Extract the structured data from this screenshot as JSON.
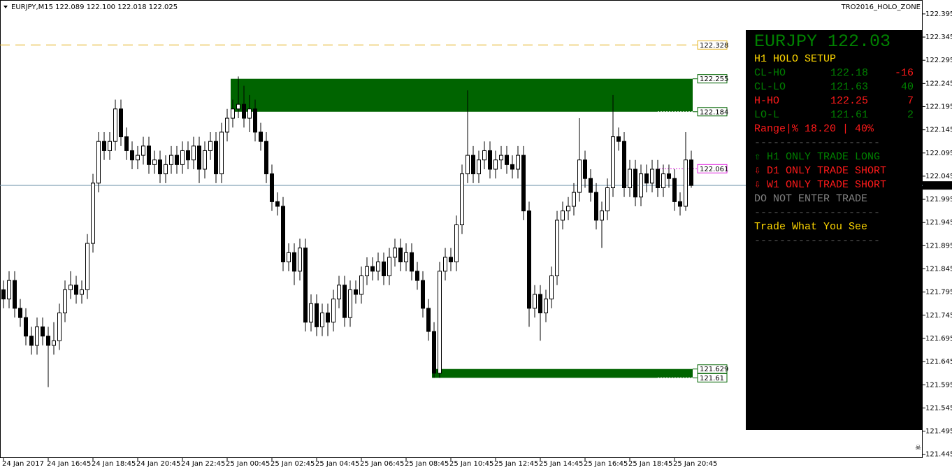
{
  "chart_data": {
    "type": "candlestick",
    "title": "EURJPY,M15  122.089 122.100 122.018 122.025",
    "indicator": "TRO2016_HOLO_ZONE",
    "categories": [
      "24 Jan 2017",
      null,
      null,
      null,
      null,
      null,
      null,
      null,
      "24 Jan 16:45",
      null,
      null,
      null,
      null,
      null,
      null,
      null,
      "24 Jan 18:45",
      null,
      null,
      null,
      null,
      null,
      null,
      null,
      "24 Jan 20:45",
      null,
      null,
      null,
      null,
      null,
      null,
      null,
      "24 Jan 22:45",
      null,
      null,
      null,
      null,
      null,
      null,
      null,
      "25 Jan 00:45",
      null,
      null,
      null,
      null,
      null,
      null,
      null,
      "25 Jan 02:45",
      null,
      null,
      null,
      null,
      null,
      null,
      null,
      "25 Jan 04:45",
      null,
      null,
      null,
      null,
      null,
      null,
      null,
      "25 Jan 06:45",
      null,
      null,
      null,
      null,
      null,
      null,
      null,
      "25 Jan 08:45",
      null,
      null,
      null,
      null,
      null,
      null,
      null,
      "25 Jan 10:45",
      null,
      null,
      null,
      null,
      null,
      null,
      null,
      "25 Jan 12:45",
      null,
      null,
      null,
      null,
      null,
      null,
      null,
      "25 Jan 14:45",
      null,
      null,
      null,
      null,
      null,
      null,
      null,
      "25 Jan 16:45",
      null,
      null,
      null,
      null,
      null,
      null,
      null,
      "25 Jan 18:45",
      null,
      null,
      null,
      null,
      null,
      null,
      null,
      "25 Jan 20:45",
      null,
      null,
      null
    ],
    "open": [
      121.8,
      121.78,
      121.82,
      121.76,
      121.74,
      121.7,
      121.68,
      121.72,
      121.7,
      121.68,
      121.69,
      121.75,
      121.8,
      121.81,
      121.79,
      121.8,
      121.9,
      122.03,
      122.12,
      122.1,
      122.12,
      122.19,
      122.13,
      122.1,
      122.08,
      122.09,
      122.11,
      122.07,
      122.08,
      122.05,
      122.07,
      122.09,
      122.07,
      122.1,
      122.08,
      122.11,
      122.06,
      122.1,
      122.12,
      122.05,
      122.14,
      122.17,
      122.19,
      122.2,
      122.17,
      122.19,
      122.14,
      122.12,
      122.05,
      121.99,
      121.98,
      121.86,
      121.88,
      121.84,
      121.89,
      121.73,
      121.77,
      121.72,
      121.75,
      121.73,
      121.78,
      121.81,
      121.74,
      121.8,
      121.79,
      121.83,
      121.85,
      121.84,
      121.86,
      121.83,
      121.87,
      121.89,
      121.86,
      121.88,
      121.84,
      121.82,
      121.76,
      121.71,
      121.62,
      121.84,
      121.87,
      121.86,
      121.94,
      122.05,
      122.09,
      122.05,
      122.08,
      122.1,
      122.06,
      122.08,
      122.09,
      122.07,
      122.06,
      122.09,
      121.97,
      121.76,
      121.79,
      121.75,
      121.78,
      121.83,
      121.95,
      121.97,
      121.98,
      122.01,
      122.08,
      122.04,
      122.01,
      121.95,
      121.97,
      122.02,
      122.13,
      122.12,
      122.02,
      122.06,
      122.0,
      122.05,
      122.03,
      122.06,
      122.02,
      122.05,
      122.04,
      121.99,
      121.98,
      122.08
    ],
    "high": [
      121.82,
      121.84,
      121.84,
      121.78,
      121.76,
      121.72,
      121.74,
      121.74,
      121.72,
      121.73,
      121.77,
      121.82,
      121.84,
      121.83,
      121.82,
      121.92,
      122.05,
      122.14,
      122.14,
      122.14,
      122.21,
      122.21,
      122.15,
      122.12,
      122.11,
      122.13,
      122.13,
      122.1,
      122.1,
      122.09,
      122.11,
      122.11,
      122.12,
      122.12,
      122.13,
      122.13,
      122.12,
      122.14,
      122.14,
      122.16,
      122.19,
      122.21,
      122.26,
      122.24,
      122.22,
      122.21,
      122.16,
      122.14,
      122.07,
      122.01,
      122.0,
      121.9,
      121.9,
      121.91,
      121.91,
      121.79,
      121.79,
      121.77,
      121.77,
      121.8,
      121.83,
      121.83,
      121.82,
      121.82,
      121.85,
      121.87,
      121.87,
      121.88,
      121.88,
      121.89,
      121.91,
      121.91,
      121.9,
      121.9,
      121.86,
      121.84,
      121.78,
      121.73,
      121.86,
      121.89,
      121.89,
      121.96,
      122.07,
      122.23,
      122.11,
      122.1,
      122.12,
      122.12,
      122.1,
      122.11,
      122.11,
      122.09,
      122.11,
      122.11,
      121.99,
      121.81,
      121.81,
      121.8,
      121.85,
      121.97,
      121.99,
      122.0,
      122.03,
      122.17,
      122.1,
      122.06,
      122.03,
      121.99,
      122.04,
      122.22,
      122.15,
      122.14,
      122.08,
      122.08,
      122.07,
      122.07,
      122.08,
      122.08,
      122.07,
      122.07,
      122.06,
      122.01,
      122.14,
      122.1
    ],
    "low": [
      121.76,
      121.76,
      121.74,
      121.72,
      121.68,
      121.66,
      121.66,
      121.68,
      121.59,
      121.66,
      121.67,
      121.73,
      121.78,
      121.77,
      121.77,
      121.78,
      121.88,
      122.01,
      122.08,
      122.08,
      122.1,
      122.11,
      122.08,
      122.06,
      122.06,
      122.07,
      122.05,
      122.05,
      122.03,
      122.03,
      122.05,
      122.05,
      122.05,
      122.06,
      122.06,
      122.03,
      122.04,
      122.08,
      122.03,
      122.03,
      122.12,
      122.15,
      122.17,
      122.15,
      122.14,
      122.12,
      122.1,
      122.03,
      121.97,
      121.96,
      121.84,
      121.84,
      121.81,
      121.82,
      121.71,
      121.71,
      121.7,
      121.7,
      121.7,
      121.71,
      121.76,
      121.72,
      121.72,
      121.77,
      121.77,
      121.81,
      121.82,
      121.82,
      121.81,
      121.81,
      121.85,
      121.84,
      121.84,
      121.82,
      121.8,
      121.74,
      121.69,
      121.61,
      121.61,
      121.82,
      121.84,
      121.84,
      121.92,
      122.03,
      122.03,
      122.03,
      122.06,
      122.04,
      122.04,
      122.06,
      122.05,
      122.04,
      122.04,
      121.95,
      121.72,
      121.74,
      121.69,
      121.73,
      121.76,
      121.81,
      121.93,
      121.95,
      121.96,
      121.99,
      122.02,
      121.99,
      121.93,
      121.89,
      121.95,
      122.0,
      122.1,
      122.0,
      122.0,
      121.98,
      121.98,
      122.01,
      122.01,
      122.0,
      122.0,
      122.02,
      121.97,
      121.96,
      121.97,
      122.02
    ],
    "close": [
      121.78,
      121.82,
      121.76,
      121.74,
      121.7,
      121.68,
      121.72,
      121.7,
      121.68,
      121.69,
      121.75,
      121.8,
      121.81,
      121.79,
      121.8,
      121.9,
      122.03,
      122.12,
      122.1,
      122.12,
      122.19,
      122.13,
      122.1,
      122.08,
      122.09,
      122.11,
      122.07,
      122.08,
      122.05,
      122.07,
      122.09,
      122.07,
      122.1,
      122.08,
      122.11,
      122.06,
      122.1,
      122.12,
      122.05,
      122.14,
      122.17,
      122.19,
      122.2,
      122.17,
      122.19,
      122.14,
      122.12,
      122.05,
      121.99,
      121.98,
      121.86,
      121.88,
      121.84,
      121.89,
      121.73,
      121.77,
      121.72,
      121.75,
      121.73,
      121.78,
      121.81,
      121.74,
      121.8,
      121.79,
      121.83,
      121.85,
      121.84,
      121.86,
      121.83,
      121.87,
      121.89,
      121.86,
      121.88,
      121.84,
      121.82,
      121.76,
      121.71,
      121.62,
      121.84,
      121.87,
      121.86,
      121.94,
      122.05,
      122.09,
      122.05,
      122.08,
      122.1,
      122.06,
      122.08,
      122.09,
      122.07,
      122.06,
      122.09,
      121.97,
      121.76,
      121.79,
      121.75,
      121.78,
      121.83,
      121.95,
      121.97,
      121.98,
      122.01,
      122.08,
      122.04,
      122.01,
      121.95,
      121.97,
      122.02,
      122.13,
      122.12,
      122.02,
      122.06,
      122.0,
      122.05,
      122.03,
      122.06,
      122.02,
      122.05,
      122.04,
      121.99,
      121.98,
      122.08,
      122.025
    ],
    "ylim": [
      121.437,
      122.425
    ],
    "yticks": [
      122.395,
      122.345,
      122.295,
      122.245,
      122.195,
      122.145,
      122.095,
      122.045,
      121.995,
      121.945,
      121.895,
      121.845,
      121.795,
      121.745,
      121.695,
      121.645,
      121.595,
      121.545,
      121.495,
      121.445
    ],
    "last_price": 122.025,
    "last_price_color": "#7a9cb0",
    "levels": [
      {
        "value": 122.328,
        "color": "#e6b422",
        "style": "dashed"
      },
      {
        "value": 122.061,
        "color": "#e020e0",
        "style": "dotted"
      }
    ],
    "zones": [
      {
        "top": 122.255,
        "bottom": 122.184,
        "color": "#006400"
      },
      {
        "top": 121.629,
        "bottom": 121.61,
        "color": "#006400"
      }
    ]
  },
  "panel": {
    "title": "EURJPY 122.03",
    "setup": "H1 HOLO SETUP",
    "rows": [
      [
        "CL-HO",
        "122.18",
        "-16"
      ],
      [
        "CL-LO",
        "121.63",
        "40"
      ],
      [
        "H-HO",
        "122.25",
        "7"
      ],
      [
        "LO-L",
        "121.61",
        "2"
      ]
    ],
    "range": "Range|% 18.20 | 40%",
    "separator": "--------------------",
    "trades": [
      "⇧ H1 ONLY TRADE LONG",
      "⇩ D1 ONLY TRADE SHORT",
      "⇩ W1 ONLY TRADE SHORT"
    ],
    "advice": "DO NOT ENTER TRADE",
    "motto": "Trade What You See"
  }
}
